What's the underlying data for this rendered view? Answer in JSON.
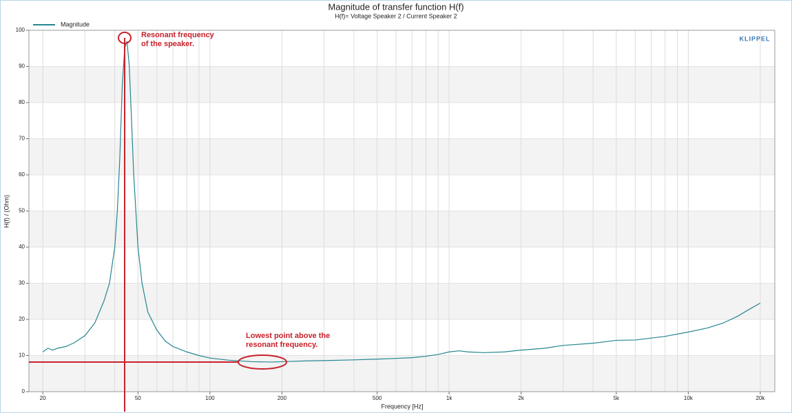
{
  "chart_data": {
    "type": "line",
    "title": "Magnitude of transfer function H(f)",
    "subtitle": "H(f)= Voltage Speaker 2 / Current Speaker 2",
    "x_label": "Frequency [Hz]",
    "y_label": "H(f) / (Ohm)",
    "logo": "KLIPPEL",
    "log_x": true,
    "grid": true,
    "legend": "top-left",
    "annotations": [
      {
        "lines": [
          "Resonant frequency",
          "of the speaker."
        ],
        "color": "#c8202a"
      },
      {
        "lines": [
          "Lowest point above the",
          "resonant frequency."
        ],
        "color": "#c8202a"
      }
    ],
    "x": [
      20,
      21,
      22,
      23,
      25,
      27,
      30,
      33,
      36,
      38,
      40,
      41,
      42,
      43,
      44,
      45,
      46,
      47,
      48,
      50,
      52,
      55,
      60,
      65,
      70,
      80,
      90,
      100,
      120,
      150,
      180,
      200,
      250,
      300,
      400,
      500,
      600,
      700,
      800,
      900,
      1000,
      1100,
      1200,
      1400,
      1700,
      2000,
      2500,
      3000,
      4000,
      5000,
      6000,
      8000,
      10000,
      12000,
      14000,
      16000,
      18000,
      20000
    ],
    "series": [
      {
        "name": "Magnitude",
        "color": "#23868f",
        "values": [
          11,
          12,
          11.5,
          12,
          12.5,
          13.5,
          15.5,
          19,
          25,
          30,
          40,
          50,
          65,
          85,
          95,
          97,
          90,
          75,
          60,
          40,
          30,
          22,
          17,
          14,
          12.5,
          11,
          10,
          9.3,
          8.7,
          8.3,
          8.2,
          8.3,
          8.5,
          8.6,
          8.8,
          9.0,
          9.2,
          9.4,
          9.8,
          10.3,
          11,
          11.3,
          11,
          10.8,
          11,
          11.5,
          12,
          12.8,
          13.4,
          14.2,
          14.3,
          15.3,
          16.5,
          17.6,
          19,
          20.8,
          22.8,
          24.5
        ]
      }
    ],
    "xlim": [
      17.5,
      23000
    ],
    "ylim": [
      0,
      100
    ],
    "yticks": [
      0,
      10,
      20,
      30,
      40,
      50,
      60,
      70,
      80,
      90,
      100
    ],
    "xticks": [
      20,
      50,
      100,
      200,
      500,
      {
        "value": 1000,
        "label": "1k"
      },
      {
        "value": 2000,
        "label": "2k"
      },
      {
        "value": 5000,
        "label": "5k"
      },
      {
        "value": 10000,
        "label": "10k"
      },
      {
        "value": 20000,
        "label": "20k"
      }
    ],
    "xgrid": [
      20,
      30,
      40,
      50,
      60,
      70,
      80,
      90,
      100,
      200,
      300,
      400,
      500,
      600,
      700,
      800,
      900,
      1000,
      2000,
      3000,
      4000,
      5000,
      6000,
      7000,
      8000,
      9000,
      10000,
      20000
    ]
  }
}
